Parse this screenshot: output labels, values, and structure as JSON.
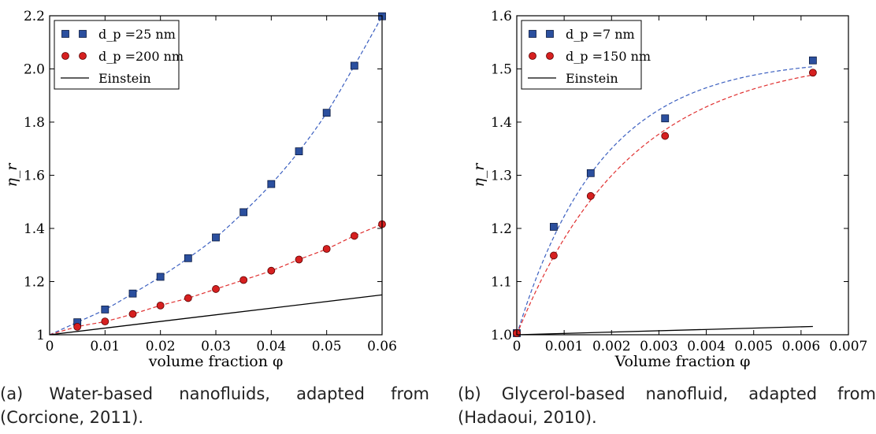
{
  "chart_data": [
    {
      "type": "scatter",
      "xlabel": "volume fraction φ",
      "ylabel": "η_r",
      "xlim": [
        0,
        0.06
      ],
      "ylim": [
        1.0,
        2.2
      ],
      "xticks": [
        "0",
        "0.01",
        "0.02",
        "0.03",
        "0.04",
        "0.05",
        "0.06"
      ],
      "yticks": [
        "1",
        "1.2",
        "1.4",
        "1.6",
        "1.8",
        "2.0",
        "2.2"
      ],
      "legend_position": "top-left",
      "series": [
        {
          "name": "d_p =25 nm",
          "marker": "square",
          "color": "#2b4f9e",
          "fit_color": "#3b5fc0",
          "x": [
            0.005,
            0.01,
            0.015,
            0.02,
            0.025,
            0.03,
            0.035,
            0.04,
            0.045,
            0.05,
            0.055,
            0.06
          ],
          "y": [
            1.047,
            1.095,
            1.155,
            1.218,
            1.288,
            1.366,
            1.461,
            1.567,
            1.69,
            1.835,
            2.012,
            2.198
          ],
          "fit": "dashed"
        },
        {
          "name": "d_p =200 nm",
          "marker": "circle",
          "color": "#d62020",
          "fit_color": "#e03030",
          "x": [
            0.005,
            0.01,
            0.015,
            0.02,
            0.025,
            0.03,
            0.035,
            0.04,
            0.045,
            0.05,
            0.055,
            0.06
          ],
          "y": [
            1.03,
            1.05,
            1.078,
            1.11,
            1.138,
            1.172,
            1.206,
            1.241,
            1.283,
            1.323,
            1.372,
            1.416
          ],
          "fit": "dashed"
        },
        {
          "name": "Einstein",
          "marker": "line",
          "color": "#000000",
          "x": [
            0,
            0.06
          ],
          "y": [
            1.0,
            1.15
          ]
        }
      ]
    },
    {
      "type": "scatter",
      "xlabel": "Volume fraction φ",
      "ylabel": "η_r",
      "xlim": [
        0,
        0.007
      ],
      "ylim": [
        1.0,
        1.6
      ],
      "xticks": [
        "0",
        "0.001",
        "0.002",
        "0.003",
        "0.004",
        "0.005",
        "0.006",
        "0.007"
      ],
      "yticks": [
        "1.0",
        "1.1",
        "1.2",
        "1.3",
        "1.4",
        "1.5",
        "1.6"
      ],
      "legend_position": "top-left",
      "series": [
        {
          "name": "d_p =7 nm",
          "marker": "square",
          "color": "#2b4f9e",
          "fit_color": "#3b5fc0",
          "x": [
            0,
            0.00078,
            0.00156,
            0.00313,
            0.00625
          ],
          "y": [
            1.003,
            1.203,
            1.304,
            1.407,
            1.516
          ],
          "fit": "dashed"
        },
        {
          "name": "d_p =150 nm",
          "marker": "circle",
          "color": "#d62020",
          "fit_color": "#e03030",
          "x": [
            0,
            0.00078,
            0.00156,
            0.00313,
            0.00625
          ],
          "y": [
            1.003,
            1.149,
            1.261,
            1.374,
            1.493
          ],
          "fit": "dashed"
        },
        {
          "name": "Einstein",
          "marker": "line",
          "color": "#000000",
          "x": [
            0,
            0.00625
          ],
          "y": [
            1.0,
            1.0156
          ]
        }
      ]
    }
  ],
  "captions": {
    "a_line1": "(a) Water-based nanofluids, adapted from",
    "a_line2": "(Corcione, 2011).",
    "b_line1": "(b) Glycerol-based nanofluid, adapted from",
    "b_line2": "(Hadaoui, 2010)."
  }
}
